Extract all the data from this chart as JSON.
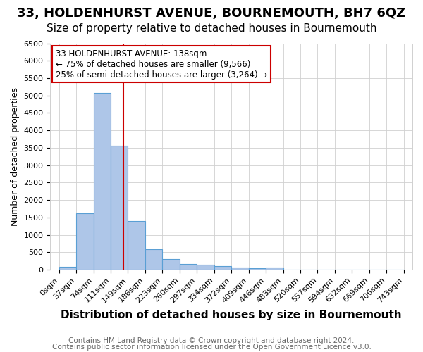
{
  "title": "33, HOLDENHURST AVENUE, BOURNEMOUTH, BH7 6QZ",
  "subtitle": "Size of property relative to detached houses in Bournemouth",
  "xlabel": "Distribution of detached houses by size in Bournemouth",
  "ylabel": "Number of detached properties",
  "bin_labels": [
    "0sqm",
    "37sqm",
    "74sqm",
    "111sqm",
    "149sqm",
    "186sqm",
    "223sqm",
    "260sqm",
    "297sqm",
    "334sqm",
    "372sqm",
    "409sqm",
    "446sqm",
    "483sqm",
    "520sqm",
    "557sqm",
    "594sqm",
    "632sqm",
    "669sqm",
    "706sqm",
    "743sqm"
  ],
  "bar_values": [
    75,
    1620,
    5080,
    3560,
    1390,
    590,
    300,
    155,
    135,
    100,
    55,
    30,
    55,
    0,
    0,
    0,
    0,
    0,
    0,
    0
  ],
  "bar_color": "#aec6e8",
  "bar_edge_color": "#5a9fd4",
  "property_line_x": 138,
  "property_line_label": "33 HOLDENHURST AVENUE: 138sqm",
  "annotation_line1": "← 75% of detached houses are smaller (9,566)",
  "annotation_line2": "25% of semi-detached houses are larger (3,264) →",
  "annotation_box_color": "#ffffff",
  "annotation_box_edge": "#cc0000",
  "line_color": "#cc0000",
  "ylim": [
    0,
    6500
  ],
  "yticks": [
    0,
    500,
    1000,
    1500,
    2000,
    2500,
    3000,
    3500,
    4000,
    4500,
    5000,
    5500,
    6000,
    6500
  ],
  "footer1": "Contains HM Land Registry data © Crown copyright and database right 2024.",
  "footer2": "Contains public sector information licensed under the Open Government Licence v3.0.",
  "bg_color": "#ffffff",
  "grid_color": "#d0d0d0",
  "title_fontsize": 13,
  "subtitle_fontsize": 11,
  "xlabel_fontsize": 11,
  "ylabel_fontsize": 9,
  "tick_fontsize": 8,
  "footer_fontsize": 7.5,
  "annotation_fontsize": 8.5,
  "bin_width": 37
}
